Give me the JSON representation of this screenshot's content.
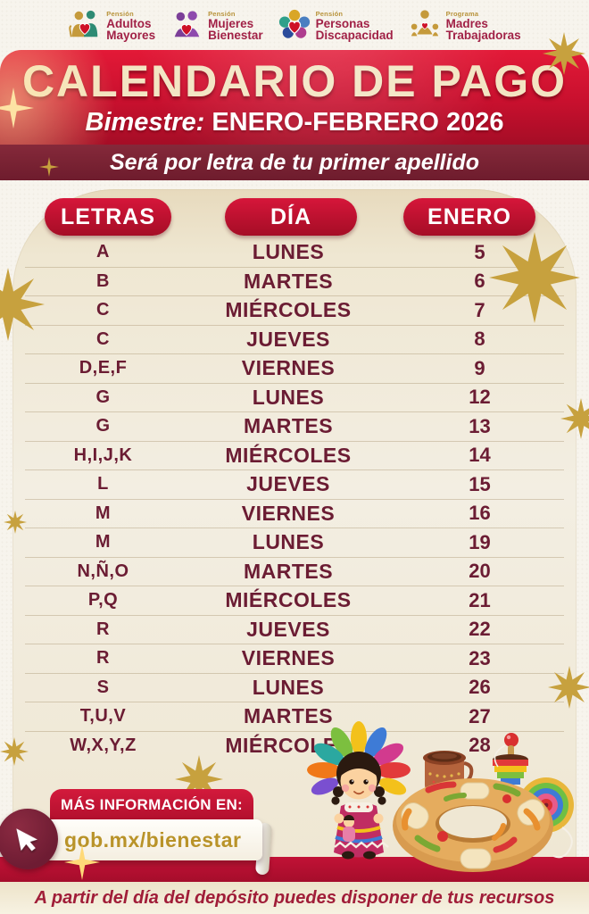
{
  "header": {
    "programs": [
      {
        "kicker": "Pensión",
        "line1": "Adultos",
        "line2": "Mayores"
      },
      {
        "kicker": "Pensión",
        "line1": "Mujeres",
        "line2": "Bienestar"
      },
      {
        "kicker": "Pensión",
        "line1": "Personas",
        "line2": "Discapacidad"
      },
      {
        "kicker": "Programa",
        "line1": "Madres",
        "line2": "Trabajadoras"
      }
    ]
  },
  "banner": {
    "title": "CALENDARIO DE PAGO",
    "bimestre_label": "Bimestre:",
    "bimestre_value": "ENERO-FEBRERO 2026",
    "instruction": "Será por letra de tu primer apellido"
  },
  "table": {
    "headers": [
      "LETRAS",
      "DÍA",
      "ENERO"
    ],
    "rows": [
      {
        "letters": "A",
        "day": "LUNES",
        "date": "5"
      },
      {
        "letters": "B",
        "day": "MARTES",
        "date": "6"
      },
      {
        "letters": "C",
        "day": "MIÉRCOLES",
        "date": "7"
      },
      {
        "letters": "C",
        "day": "JUEVES",
        "date": "8"
      },
      {
        "letters": "D,E,F",
        "day": "VIERNES",
        "date": "9"
      },
      {
        "letters": "G",
        "day": "LUNES",
        "date": "12"
      },
      {
        "letters": "G",
        "day": "MARTES",
        "date": "13"
      },
      {
        "letters": "H,I,J,K",
        "day": "MIÉRCOLES",
        "date": "14"
      },
      {
        "letters": "L",
        "day": "JUEVES",
        "date": "15"
      },
      {
        "letters": "M",
        "day": "VIERNES",
        "date": "16"
      },
      {
        "letters": "M",
        "day": "LUNES",
        "date": "19"
      },
      {
        "letters": "N,Ñ,O",
        "day": "MARTES",
        "date": "20"
      },
      {
        "letters": "P,Q",
        "day": "MIÉRCOLES",
        "date": "21"
      },
      {
        "letters": "R",
        "day": "JUEVES",
        "date": "22"
      },
      {
        "letters": "R",
        "day": "VIERNES",
        "date": "23"
      },
      {
        "letters": "S",
        "day": "LUNES",
        "date": "26"
      },
      {
        "letters": "T,U,V",
        "day": "MARTES",
        "date": "27"
      },
      {
        "letters": "W,X,Y,Z",
        "day": "MIÉRCOLES",
        "date": "28"
      }
    ]
  },
  "footer": {
    "more_info": "MÁS INFORMACIÓN EN:",
    "url": "gob.mx/bienestar",
    "note": "A partir del día del depósito puedes disponer de tus recursos"
  },
  "colors": {
    "crimson": "#C8102E",
    "maroon_bar": "#6E1C2D",
    "row_text": "#6B1C33",
    "card_cream": "#EFE7D2",
    "gold": "#B99329",
    "title_cream": "#F3E5C3"
  }
}
